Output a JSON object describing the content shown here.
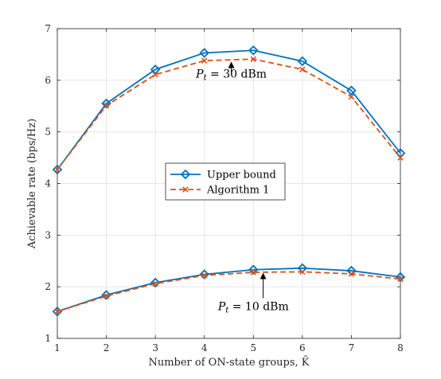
{
  "chart_data": {
    "type": "line",
    "xlabel": "Number of ON-state groups, K̄",
    "ylabel": "Achievable rate (bps/Hz)",
    "xlim": [
      1,
      8
    ],
    "ylim": [
      1,
      7
    ],
    "xticks": [
      "1",
      "2",
      "3",
      "4",
      "5",
      "6",
      "7",
      "8"
    ],
    "yticks": [
      "1",
      "2",
      "3",
      "4",
      "5",
      "6",
      "7"
    ],
    "grid": true,
    "legend_placement": "center",
    "legend": [
      "Upper bound",
      "Algorithm 1"
    ],
    "x": [
      1,
      2,
      3,
      4,
      5,
      6,
      7,
      8
    ],
    "series": [
      {
        "name": "Upper bound",
        "group": "Pt = 30 dBm",
        "color": "#0072BD",
        "marker": "diamond",
        "dash": "solid",
        "values": [
          4.27,
          5.55,
          6.21,
          6.53,
          6.58,
          6.37,
          5.8,
          4.59
        ]
      },
      {
        "name": "Algorithm 1",
        "group": "Pt = 30 dBm",
        "color": "#D95319",
        "marker": "x",
        "dash": "dashed",
        "values": [
          4.27,
          5.51,
          6.11,
          6.38,
          6.41,
          6.21,
          5.68,
          4.5
        ]
      },
      {
        "name": "Upper bound",
        "group": "Pt = 10 dBm",
        "color": "#0072BD",
        "marker": "diamond",
        "dash": "solid",
        "values": [
          1.52,
          1.84,
          2.08,
          2.24,
          2.33,
          2.36,
          2.31,
          2.19
        ]
      },
      {
        "name": "Algorithm 1",
        "group": "Pt = 10 dBm",
        "color": "#D95319",
        "marker": "x",
        "dash": "dashed",
        "values": [
          1.52,
          1.82,
          2.06,
          2.22,
          2.28,
          2.29,
          2.25,
          2.15
        ]
      }
    ],
    "annotations": [
      {
        "text_var": "P",
        "text_sub": "t",
        "text_rest": " = 30 dBm",
        "x": 4.55,
        "y": 6.05,
        "arrow_from": [
          4.55,
          6.15
        ],
        "arrow_to": [
          4.55,
          6.36
        ]
      },
      {
        "text_var": "P",
        "text_sub": "t",
        "text_rest": " = 10 dBm",
        "x": 5.0,
        "y": 1.55,
        "arrow_from": [
          5.2,
          1.78
        ],
        "arrow_to": [
          5.2,
          2.27
        ]
      }
    ]
  }
}
